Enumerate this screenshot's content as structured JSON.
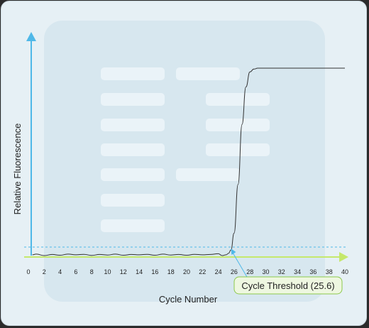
{
  "chart_data": {
    "type": "line",
    "xlabel": "Cycle Number",
    "ylabel": "Relative Fluorescence",
    "x_ticks": [
      0,
      2,
      4,
      6,
      8,
      10,
      12,
      14,
      16,
      18,
      20,
      22,
      24,
      26,
      28,
      30,
      32,
      34,
      36,
      38,
      40
    ],
    "xlim": [
      0,
      40
    ],
    "threshold_cycle": 25.6,
    "annotation": "Cycle Threshold (25.6)",
    "series": [
      {
        "x": [
          0.5,
          1,
          2,
          3,
          4,
          5,
          6,
          7,
          8,
          9,
          10,
          11,
          12,
          13,
          14,
          15,
          16,
          17,
          18,
          19,
          20,
          21,
          22,
          23,
          24,
          24.5,
          25,
          25.3,
          25.6,
          26,
          26.5,
          27,
          27.5,
          28,
          28.5,
          29,
          30,
          31,
          32,
          34,
          36,
          38,
          40
        ],
        "y": [
          0.004,
          0.008,
          0.0,
          0.006,
          0.002,
          0.008,
          0.004,
          0.007,
          0.001,
          0.006,
          0.003,
          0.008,
          0.002,
          0.006,
          0.004,
          0.007,
          0.002,
          0.008,
          0.003,
          0.006,
          0.002,
          0.007,
          0.004,
          0.006,
          0.01,
          0.0,
          0.004,
          0.012,
          0.03,
          0.12,
          0.38,
          0.7,
          0.9,
          0.98,
          0.995,
          1.0,
          1.0,
          1.0,
          1.0,
          1.0,
          1.0,
          1.0,
          1.0
        ]
      }
    ],
    "colors": {
      "frame_bg": "#e6f0f5",
      "panel_bg": "#d7e7ef",
      "placeholder": "#eaf3f8",
      "y_axis": "#4fb8e8",
      "x_axis": "#c5e86c",
      "threshold_line": "#4fb8e8",
      "curve": "#333333",
      "callout_bg": "#eef7e0",
      "callout_border": "#8cc84b",
      "arrow": "#4fb8e8"
    }
  }
}
